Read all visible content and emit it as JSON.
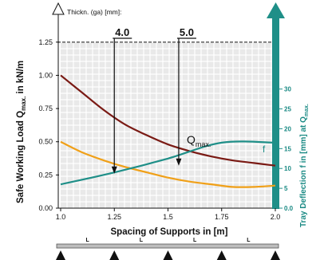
{
  "chart_data": {
    "type": "line",
    "xlabel": "Spacing of Supports in [m]",
    "ylabel": "Safe Working Load Q",
    "ylabel_sub": "max.",
    "ylabel_unit": " in kN/m",
    "y2label": "Tray Deflection f in [mm] at Q",
    "y2label_sub": "max.",
    "thickness_label": "Thickn. (ga) [mm]:",
    "x_ticks": [
      "1.0",
      "1.25",
      "1.5",
      "1.75",
      "2.0"
    ],
    "y_ticks": [
      "0.00",
      "0.25",
      "0.50",
      "0.75",
      "1.00",
      "1.25"
    ],
    "y2_ticks": [
      "0.0",
      "5",
      "10",
      "15",
      "20",
      "25",
      "30"
    ],
    "xlim": [
      1.0,
      2.0
    ],
    "ylim": [
      0,
      1.375
    ],
    "y2lim": [
      0,
      46
    ],
    "grid": true,
    "thickness_markers": [
      {
        "label": "4.0",
        "x": 1.25
      },
      {
        "label": "5.0",
        "x": 1.55
      }
    ],
    "qmax_label": "Q",
    "qmax_sub": "max.",
    "f_label": "f",
    "series": [
      {
        "key": "load_dark",
        "color": "#7a1a14",
        "axis": "left",
        "x": [
          1.0,
          1.1,
          1.2,
          1.3,
          1.4,
          1.5,
          1.6,
          1.7,
          1.8,
          1.9,
          2.0
        ],
        "y": [
          1.0,
          0.87,
          0.74,
          0.63,
          0.55,
          0.48,
          0.43,
          0.39,
          0.36,
          0.34,
          0.32
        ]
      },
      {
        "key": "load_orange",
        "color": "#f0a018",
        "axis": "left",
        "x": [
          1.0,
          1.1,
          1.2,
          1.3,
          1.4,
          1.5,
          1.6,
          1.7,
          1.8,
          1.9,
          2.0
        ],
        "y": [
          0.5,
          0.42,
          0.36,
          0.31,
          0.27,
          0.23,
          0.2,
          0.18,
          0.16,
          0.16,
          0.17
        ]
      },
      {
        "key": "deflection",
        "color": "#1f8f88",
        "axis": "right",
        "x": [
          1.0,
          1.25,
          1.5,
          1.75,
          2.0
        ],
        "y": [
          6.0,
          9.0,
          12.5,
          16.5,
          16.5
        ]
      }
    ],
    "span_label": "L"
  },
  "colors": {
    "teal": "#1f8f88",
    "grid": "#c8c8c8",
    "panel": "#e9e9e9"
  }
}
